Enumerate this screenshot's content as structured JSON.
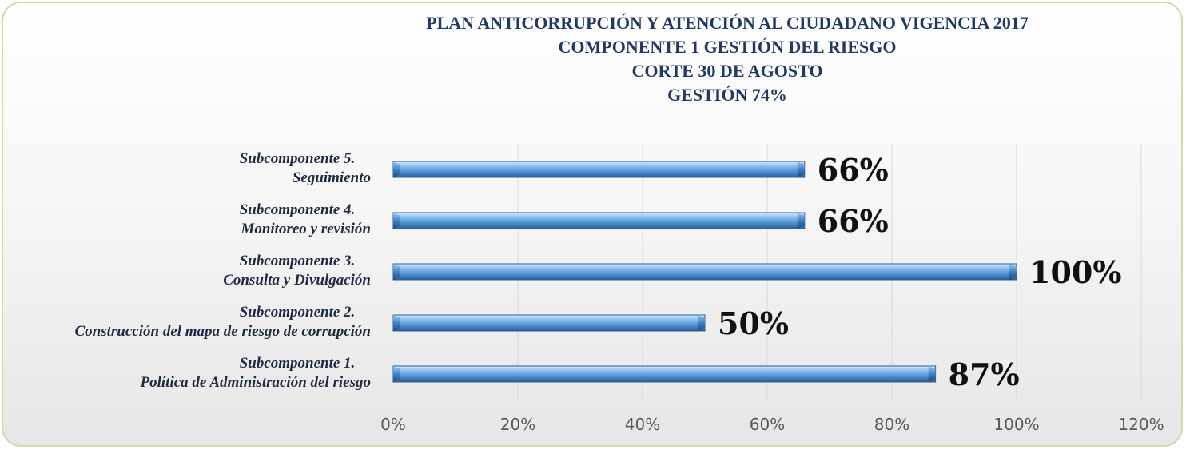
{
  "chart_data": {
    "type": "bar",
    "orientation": "horizontal",
    "title_lines": [
      "PLAN ANTICORRUPCIÓN Y ATENCIÓN AL CIUDADANO  VIGENCIA 2017",
      "COMPONENTE 1 GESTIÓN DEL RIESGO",
      "CORTE 30 DE AGOSTO",
      "GESTIÓN 74%"
    ],
    "categories": [
      [
        "Subcomponente 1.",
        "Política de Administración del riesgo"
      ],
      [
        "Subcomponente 2.",
        "Construcción del mapa de riesgo de corrupción"
      ],
      [
        "Subcomponente 3.",
        "Consulta y Divulgación"
      ],
      [
        "Subcomponente 4.",
        "Monitoreo y revisión"
      ],
      [
        "Subcomponente 5.",
        "Seguimiento"
      ]
    ],
    "values": [
      87,
      50,
      100,
      66,
      66
    ],
    "data_labels": [
      "87%",
      "50%",
      "100%",
      "66%",
      "66%"
    ],
    "xlim": [
      0,
      120
    ],
    "x_ticks": [
      "0%",
      "20%",
      "40%",
      "60%",
      "80%",
      "100%",
      "120%"
    ],
    "grid": true,
    "colors": {
      "bar": "#5b9bd5",
      "bar_light": "#a9cff2",
      "bar_dark": "#2e6aa8",
      "title": "#1f3864",
      "border": "#c9dfa7"
    }
  }
}
